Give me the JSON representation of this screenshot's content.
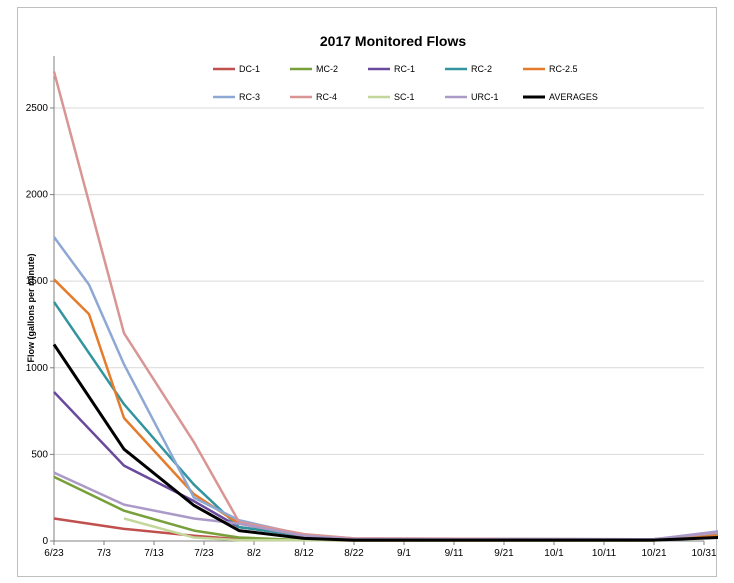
{
  "chart_data": {
    "type": "line",
    "title": "2017 Monitored Flows",
    "xlabel": "",
    "ylabel": "Flow (gallons per minute)",
    "x_ticks": [
      "6/23",
      "7/3",
      "7/13",
      "7/23",
      "8/2",
      "8/12",
      "8/22",
      "9/1",
      "9/11",
      "9/21",
      "10/1",
      "10/11",
      "10/21",
      "10/31"
    ],
    "x_range_days": [
      0,
      130
    ],
    "ylim": [
      0,
      2800
    ],
    "y_ticks": [
      0,
      500,
      1000,
      1500,
      2000,
      2500
    ],
    "grid": "horizontal",
    "legend_position": "top",
    "series": [
      {
        "name": "DC-1",
        "color": "#c0504d",
        "points": [
          [
            0,
            130
          ],
          [
            14,
            70
          ],
          [
            28,
            30
          ],
          [
            37,
            10
          ],
          [
            50,
            5
          ],
          [
            60,
            3
          ],
          [
            120,
            3
          ]
        ]
      },
      {
        "name": "MC-2",
        "color": "#77a03a",
        "points": [
          [
            0,
            370
          ],
          [
            14,
            175
          ],
          [
            28,
            60
          ],
          [
            37,
            20
          ],
          [
            50,
            5
          ],
          [
            60,
            3
          ],
          [
            120,
            3
          ]
        ]
      },
      {
        "name": "RC-1",
        "color": "#6a4a9c",
        "points": [
          [
            0,
            860
          ],
          [
            14,
            435
          ],
          [
            28,
            230
          ],
          [
            37,
            80
          ],
          [
            50,
            30
          ],
          [
            60,
            10
          ],
          [
            120,
            10
          ],
          [
            137,
            25
          ]
        ]
      },
      {
        "name": "RC-2",
        "color": "#31949e",
        "points": [
          [
            0,
            1380
          ],
          [
            14,
            790
          ],
          [
            28,
            325
          ],
          [
            37,
            80
          ],
          [
            50,
            30
          ],
          [
            60,
            10
          ],
          [
            120,
            10
          ],
          [
            137,
            55
          ]
        ]
      },
      {
        "name": "RC-2.5",
        "color": "#e57c2b",
        "points": [
          [
            0,
            1510
          ],
          [
            7,
            1310
          ],
          [
            14,
            710
          ],
          [
            28,
            270
          ],
          [
            37,
            100
          ],
          [
            50,
            30
          ],
          [
            60,
            10
          ],
          [
            120,
            10
          ],
          [
            137,
            40
          ]
        ]
      },
      {
        "name": "RC-3",
        "color": "#8ea8d6",
        "points": [
          [
            0,
            1755
          ],
          [
            7,
            1480
          ],
          [
            14,
            1020
          ],
          [
            28,
            250
          ],
          [
            37,
            120
          ],
          [
            50,
            35
          ],
          [
            60,
            15
          ],
          [
            120,
            10
          ],
          [
            137,
            60
          ]
        ]
      },
      {
        "name": "RC-4",
        "color": "#d99594",
        "points": [
          [
            0,
            2710
          ],
          [
            14,
            1200
          ],
          [
            28,
            570
          ],
          [
            37,
            110
          ],
          [
            50,
            40
          ],
          [
            60,
            15
          ],
          [
            120,
            10
          ],
          [
            137,
            65
          ]
        ]
      },
      {
        "name": "SC-1",
        "color": "#c4d79b",
        "points": [
          [
            14,
            130
          ],
          [
            28,
            20
          ],
          [
            37,
            5
          ],
          [
            120,
            3
          ]
        ]
      },
      {
        "name": "URC-1",
        "color": "#ab9ac7",
        "points": [
          [
            0,
            395
          ],
          [
            14,
            210
          ],
          [
            28,
            130
          ],
          [
            37,
            100
          ],
          [
            50,
            30
          ],
          [
            60,
            10
          ],
          [
            120,
            10
          ],
          [
            137,
            70
          ]
        ]
      },
      {
        "name": "AVERAGES",
        "color": "#000000",
        "width": 3,
        "points": [
          [
            0,
            1135
          ],
          [
            14,
            530
          ],
          [
            28,
            205
          ],
          [
            37,
            60
          ],
          [
            50,
            15
          ],
          [
            60,
            5
          ],
          [
            120,
            5
          ],
          [
            137,
            25
          ]
        ]
      }
    ]
  }
}
